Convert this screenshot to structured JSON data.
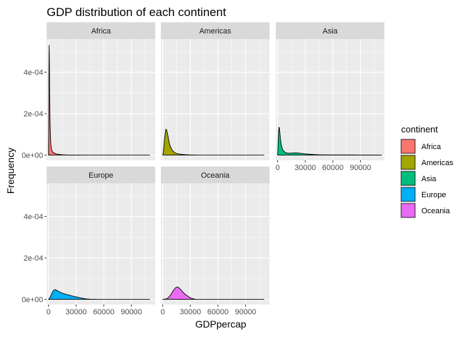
{
  "chart_data": {
    "type": "area",
    "title": "GDP distribution of each continent",
    "xlabel": "GDPpercap",
    "ylabel": "Frequency",
    "xlim": [
      -2000,
      116000
    ],
    "ylim": [
      -2.5e-05,
      0.00056
    ],
    "x_ticks": [
      0,
      30000,
      60000,
      90000
    ],
    "x_tick_labels": [
      "0",
      "30000",
      "60000",
      "90000"
    ],
    "y_ticks": [
      0,
      0.0002,
      0.0004
    ],
    "y_tick_labels": [
      "0e+00",
      "2e-04",
      "4e-04"
    ],
    "grid": true,
    "legend": {
      "title": "continent",
      "position": "right",
      "entries": [
        "Africa",
        "Americas",
        "Asia",
        "Europe",
        "Oceania"
      ]
    },
    "series": [
      {
        "name": "Africa",
        "color": "#F8766D",
        "points": [
          [
            0,
            0
          ],
          [
            200,
            0.0001
          ],
          [
            350,
            0.00028
          ],
          [
            500,
            0.00046
          ],
          [
            650,
            0.00053
          ],
          [
            800,
            0.0005
          ],
          [
            950,
            0.00044
          ],
          [
            1150,
            0.00034
          ],
          [
            1400,
            0.00025
          ],
          [
            1700,
            0.00016
          ],
          [
            2100,
            9e-05
          ],
          [
            2600,
            5e-05
          ],
          [
            3200,
            3e-05
          ],
          [
            4000,
            1.8e-05
          ],
          [
            5500,
            1.2e-05
          ],
          [
            7000,
            8e-06
          ],
          [
            9000,
            5e-06
          ],
          [
            12000,
            3e-06
          ],
          [
            15000,
            1.5e-06
          ],
          [
            20000,
            5e-07
          ],
          [
            25000,
            2e-07
          ],
          [
            110000,
            0
          ]
        ]
      },
      {
        "name": "Americas",
        "color": "#A3A500",
        "points": [
          [
            0,
            0
          ],
          [
            500,
            1e-05
          ],
          [
            1200,
            4e-05
          ],
          [
            2000,
            8e-05
          ],
          [
            2800,
            0.00011
          ],
          [
            3500,
            0.000125
          ],
          [
            4200,
            0.000122
          ],
          [
            5000,
            0.000108
          ],
          [
            6000,
            8.5e-05
          ],
          [
            7000,
            6.2e-05
          ],
          [
            8000,
            4.5e-05
          ],
          [
            9500,
            3e-05
          ],
          [
            11000,
            2e-05
          ],
          [
            13000,
            1.2e-05
          ],
          [
            15000,
            8e-06
          ],
          [
            18000,
            5e-06
          ],
          [
            22000,
            3e-06
          ],
          [
            26000,
            1.5e-06
          ],
          [
            30000,
            8e-07
          ],
          [
            35000,
            3e-07
          ],
          [
            42000,
            0
          ],
          [
            110000,
            0
          ]
        ]
      },
      {
        "name": "Asia",
        "color": "#00BF7D",
        "points": [
          [
            0,
            0
          ],
          [
            300,
            3e-05
          ],
          [
            700,
            8e-05
          ],
          [
            1100,
            0.00012
          ],
          [
            1500,
            0.000135
          ],
          [
            1900,
            0.00013
          ],
          [
            2400,
            0.00011
          ],
          [
            3000,
            8e-05
          ],
          [
            3800,
            5.5e-05
          ],
          [
            4800,
            3.5e-05
          ],
          [
            6000,
            2.2e-05
          ],
          [
            8000,
            1.4e-05
          ],
          [
            10000,
            1e-05
          ],
          [
            13000,
            9e-06
          ],
          [
            16000,
            1e-05
          ],
          [
            19000,
            1.1e-05
          ],
          [
            22000,
            1e-05
          ],
          [
            26000,
            8e-06
          ],
          [
            30000,
            6e-06
          ],
          [
            35000,
            4e-06
          ],
          [
            40000,
            2.5e-06
          ],
          [
            45000,
            1.5e-06
          ],
          [
            55000,
            1e-06
          ],
          [
            70000,
            8e-07
          ],
          [
            90000,
            6e-07
          ],
          [
            100000,
            5e-07
          ],
          [
            110000,
            3e-07
          ],
          [
            113000,
            0
          ]
        ]
      },
      {
        "name": "Europe",
        "color": "#00B0F6",
        "points": [
          [
            0,
            0
          ],
          [
            1000,
            5e-06
          ],
          [
            2000,
            1.2e-05
          ],
          [
            3000,
            2.2e-05
          ],
          [
            4000,
            3.2e-05
          ],
          [
            5000,
            4e-05
          ],
          [
            6000,
            4.5e-05
          ],
          [
            7000,
            4.7e-05
          ],
          [
            8000,
            4.6e-05
          ],
          [
            9500,
            4.2e-05
          ],
          [
            11000,
            3.8e-05
          ],
          [
            13000,
            3.4e-05
          ],
          [
            15000,
            3e-05
          ],
          [
            17000,
            2.7e-05
          ],
          [
            20000,
            2.3e-05
          ],
          [
            23000,
            2e-05
          ],
          [
            26000,
            1.6e-05
          ],
          [
            29000,
            1.3e-05
          ],
          [
            32000,
            1e-05
          ],
          [
            35000,
            7e-06
          ],
          [
            38000,
            4e-06
          ],
          [
            41000,
            2e-06
          ],
          [
            45000,
            8e-07
          ],
          [
            50000,
            2e-07
          ],
          [
            55000,
            0
          ],
          [
            110000,
            0
          ]
        ]
      },
      {
        "name": "Oceania",
        "color": "#E76BF3",
        "points": [
          [
            0,
            0
          ],
          [
            4000,
            2e-06
          ],
          [
            6000,
            8e-06
          ],
          [
            8000,
            1.8e-05
          ],
          [
            10000,
            3.2e-05
          ],
          [
            12000,
            4.6e-05
          ],
          [
            14000,
            5.6e-05
          ],
          [
            15500,
            6e-05
          ],
          [
            17000,
            5.8e-05
          ],
          [
            19000,
            5e-05
          ],
          [
            21000,
            4e-05
          ],
          [
            23000,
            3e-05
          ],
          [
            25000,
            2.2e-05
          ],
          [
            27000,
            1.6e-05
          ],
          [
            29000,
            1e-05
          ],
          [
            31000,
            6e-06
          ],
          [
            33000,
            3e-06
          ],
          [
            35000,
            1e-06
          ],
          [
            37000,
            0
          ],
          [
            110000,
            0
          ]
        ]
      }
    ]
  }
}
